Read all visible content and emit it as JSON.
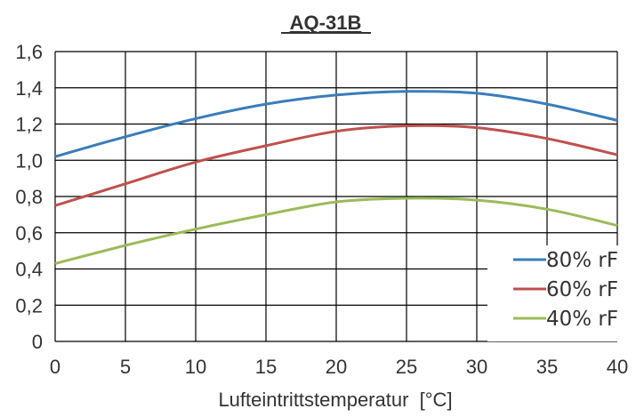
{
  "chart_data": {
    "type": "line",
    "title": "AQ-31B",
    "xlabel": "Lufteintrittstemperatur  [°C]",
    "ylabel": "",
    "xlim": [
      0,
      40
    ],
    "ylim": [
      0,
      1.6
    ],
    "x_ticks": [
      "0",
      "5",
      "10",
      "15",
      "20",
      "25",
      "30",
      "35",
      "40"
    ],
    "y_ticks": [
      "0",
      "0,2",
      "0,4",
      "0,6",
      "0,8",
      "1,0",
      "1,2",
      "1,4",
      "1,6"
    ],
    "grid": true,
    "legend_position": "bottom-right",
    "x": [
      0,
      5,
      10,
      15,
      20,
      25,
      30,
      35,
      40
    ],
    "series": [
      {
        "name": "80% rF",
        "color": "#3a7dbb",
        "values": [
          1.02,
          1.13,
          1.23,
          1.31,
          1.36,
          1.38,
          1.37,
          1.31,
          1.22
        ]
      },
      {
        "name": "60% rF",
        "color": "#c0504d",
        "values": [
          0.75,
          0.87,
          0.99,
          1.08,
          1.16,
          1.19,
          1.18,
          1.12,
          1.03
        ]
      },
      {
        "name": "40% rF",
        "color": "#9bbb59",
        "values": [
          0.43,
          0.53,
          0.62,
          0.7,
          0.77,
          0.79,
          0.78,
          0.73,
          0.64
        ]
      }
    ]
  }
}
